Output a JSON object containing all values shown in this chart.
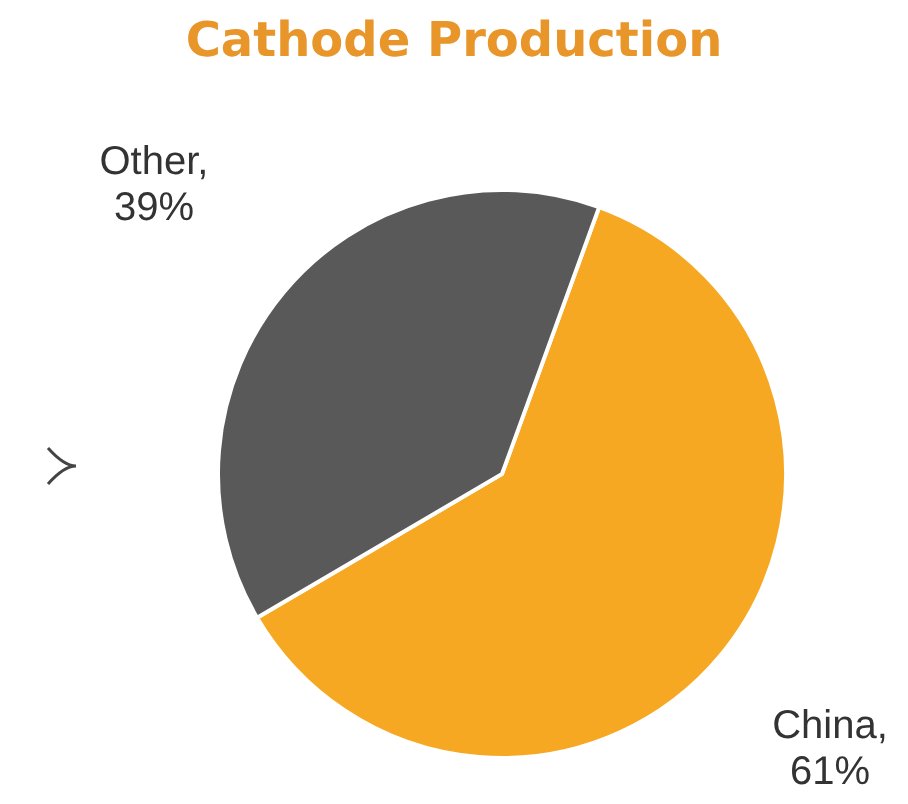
{
  "chart_data": {
    "type": "pie",
    "title": "Cathode Production",
    "categories": [
      "China",
      "Other"
    ],
    "value_labels": [
      ", 61%",
      ", 39%"
    ],
    "values": [
      61,
      39
    ],
    "colors": [
      "#f7a823",
      "#595959"
    ]
  }
}
